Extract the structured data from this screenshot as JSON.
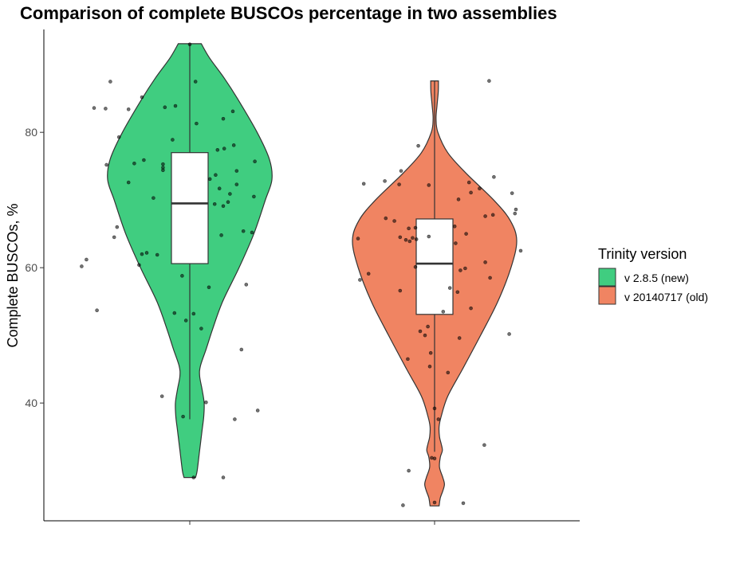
{
  "chart_data": {
    "type": "violin",
    "title": "Comparison of complete BUSCOs percentage in two assemblies",
    "xlabel": "",
    "ylabel": "Complete BUSCOs, %",
    "ylim": [
      22.6,
      95.2
    ],
    "yticks": [
      40,
      60,
      80
    ],
    "legend": {
      "title": "Trinity version",
      "position": "right"
    },
    "grid": false,
    "series": [
      {
        "name": "v 2.8.5 (new)",
        "color": "#40cd80",
        "box": {
          "min": 37.6,
          "q1": 60.6,
          "median": 69.5,
          "q3": 77.0,
          "max": 93.1
        },
        "violin_range": [
          29.0,
          93.1
        ],
        "density_profile": [
          [
            29.0,
            0.07
          ],
          [
            30.0,
            0.09
          ],
          [
            33.0,
            0.12
          ],
          [
            36.0,
            0.15
          ],
          [
            38.0,
            0.17
          ],
          [
            40.0,
            0.175
          ],
          [
            42.0,
            0.15
          ],
          [
            44.0,
            0.12
          ],
          [
            45.5,
            0.13
          ],
          [
            48.0,
            0.2
          ],
          [
            51.0,
            0.28
          ],
          [
            55.0,
            0.4
          ],
          [
            60.0,
            0.6
          ],
          [
            65.0,
            0.78
          ],
          [
            70.0,
            0.92
          ],
          [
            73.0,
            1.0
          ],
          [
            76.0,
            0.97
          ],
          [
            80.0,
            0.82
          ],
          [
            85.0,
            0.58
          ],
          [
            88.0,
            0.42
          ],
          [
            91.0,
            0.24
          ],
          [
            93.1,
            0.14
          ]
        ],
        "points": [
          [
            93.0,
            0.0
          ],
          [
            87.5,
            0.06
          ],
          [
            87.5,
            -0.83
          ],
          [
            85.2,
            -0.5
          ],
          [
            83.9,
            -0.15
          ],
          [
            83.7,
            -0.26
          ],
          [
            83.6,
            -1.0
          ],
          [
            83.5,
            -0.88
          ],
          [
            83.4,
            -0.64
          ],
          [
            83.1,
            0.45
          ],
          [
            82.0,
            0.35
          ],
          [
            81.3,
            0.07
          ],
          [
            79.3,
            -0.74
          ],
          [
            78.9,
            -0.18
          ],
          [
            78.1,
            0.46
          ],
          [
            77.6,
            0.36
          ],
          [
            77.4,
            0.29
          ],
          [
            75.9,
            -0.48
          ],
          [
            75.7,
            0.68
          ],
          [
            75.4,
            -0.58
          ],
          [
            75.3,
            -0.28
          ],
          [
            75.2,
            -0.87
          ],
          [
            74.8,
            -0.28
          ],
          [
            74.4,
            -0.28
          ],
          [
            74.3,
            0.49
          ],
          [
            73.7,
            0.27
          ],
          [
            73.1,
            0.21
          ],
          [
            72.6,
            -0.64
          ],
          [
            72.3,
            0.49
          ],
          [
            71.7,
            0.31
          ],
          [
            70.9,
            0.42
          ],
          [
            70.5,
            0.67
          ],
          [
            70.3,
            -0.38
          ],
          [
            69.7,
            0.4
          ],
          [
            69.4,
            0.26
          ],
          [
            69.1,
            0.35
          ],
          [
            66.0,
            -0.76
          ],
          [
            65.4,
            0.56
          ],
          [
            65.2,
            0.65
          ],
          [
            64.8,
            0.33
          ],
          [
            64.5,
            -0.79
          ],
          [
            62.2,
            -0.45
          ],
          [
            62.0,
            -0.5
          ],
          [
            61.9,
            -0.34
          ],
          [
            61.2,
            -1.08
          ],
          [
            60.4,
            -0.53
          ],
          [
            60.2,
            -1.13
          ],
          [
            58.8,
            -0.08
          ],
          [
            57.5,
            0.59
          ],
          [
            57.1,
            0.2
          ],
          [
            53.7,
            -0.97
          ],
          [
            53.3,
            -0.16
          ],
          [
            53.2,
            0.04
          ],
          [
            52.2,
            -0.04
          ],
          [
            51.0,
            0.12
          ],
          [
            47.9,
            0.54
          ],
          [
            41.0,
            -0.29
          ],
          [
            40.1,
            0.17
          ],
          [
            38.9,
            0.71
          ],
          [
            38.0,
            -0.07
          ],
          [
            37.6,
            0.47
          ],
          [
            29.0,
            0.04
          ],
          [
            29.0,
            0.35
          ]
        ]
      },
      {
        "name": "v 20140717 (old)",
        "color": "#f08462",
        "box": {
          "min": 32.8,
          "q1": 53.1,
          "median": 60.6,
          "q3": 67.2,
          "max": 87.6
        },
        "violin_range": [
          24.8,
          87.6
        ],
        "density_profile": [
          [
            24.8,
            0.055
          ],
          [
            26.0,
            0.07
          ],
          [
            27.0,
            0.1
          ],
          [
            28.0,
            0.12
          ],
          [
            29.0,
            0.1
          ],
          [
            30.5,
            0.06
          ],
          [
            32.0,
            0.07
          ],
          [
            33.0,
            0.095
          ],
          [
            34.0,
            0.08
          ],
          [
            35.0,
            0.06
          ],
          [
            36.5,
            0.055
          ],
          [
            38.0,
            0.08
          ],
          [
            41.0,
            0.16
          ],
          [
            45.0,
            0.34
          ],
          [
            50.0,
            0.56
          ],
          [
            55.0,
            0.77
          ],
          [
            60.0,
            0.93
          ],
          [
            64.0,
            1.0
          ],
          [
            67.0,
            0.92
          ],
          [
            70.0,
            0.72
          ],
          [
            74.0,
            0.38
          ],
          [
            77.0,
            0.16
          ],
          [
            80.0,
            0.04
          ],
          [
            82.0,
            0.018
          ],
          [
            84.0,
            0.03
          ],
          [
            86.0,
            0.045
          ],
          [
            87.6,
            0.047
          ]
        ],
        "points": [
          [
            87.6,
            0.57
          ],
          [
            78.0,
            -0.17
          ],
          [
            74.3,
            -0.35
          ],
          [
            73.4,
            0.62
          ],
          [
            72.8,
            -0.52
          ],
          [
            72.6,
            0.36
          ],
          [
            72.4,
            -0.74
          ],
          [
            72.3,
            -0.37
          ],
          [
            72.2,
            -0.06
          ],
          [
            71.7,
            0.47
          ],
          [
            71.1,
            0.38
          ],
          [
            71.0,
            0.81
          ],
          [
            70.1,
            0.25
          ],
          [
            68.6,
            0.85
          ],
          [
            68.0,
            0.84
          ],
          [
            67.8,
            0.61
          ],
          [
            67.6,
            0.53
          ],
          [
            67.3,
            -0.51
          ],
          [
            66.9,
            -0.42
          ],
          [
            66.1,
            0.21
          ],
          [
            65.9,
            -0.2
          ],
          [
            65.8,
            -0.27
          ],
          [
            65.0,
            0.33
          ],
          [
            64.6,
            -0.06
          ],
          [
            64.5,
            -0.36
          ],
          [
            64.4,
            -0.23
          ],
          [
            64.3,
            -0.8
          ],
          [
            64.2,
            -0.19
          ],
          [
            64.1,
            -0.3
          ],
          [
            63.9,
            -0.26
          ],
          [
            63.6,
            0.22
          ],
          [
            62.5,
            0.9
          ],
          [
            60.8,
            0.53
          ],
          [
            60.1,
            -0.2
          ],
          [
            59.9,
            0.32
          ],
          [
            59.6,
            0.27
          ],
          [
            59.1,
            -0.69
          ],
          [
            58.5,
            0.58
          ],
          [
            58.2,
            -0.78
          ],
          [
            57.0,
            0.16
          ],
          [
            56.6,
            -0.36
          ],
          [
            56.4,
            0.24
          ],
          [
            54.0,
            0.38
          ],
          [
            53.5,
            0.09
          ],
          [
            51.3,
            -0.07
          ],
          [
            50.6,
            -0.15
          ],
          [
            50.2,
            0.78
          ],
          [
            50.0,
            -0.1
          ],
          [
            49.6,
            0.26
          ],
          [
            47.4,
            -0.04
          ],
          [
            46.5,
            -0.28
          ],
          [
            45.4,
            -0.05
          ],
          [
            44.5,
            0.14
          ],
          [
            39.2,
            0.0
          ],
          [
            37.6,
            0.04
          ],
          [
            33.8,
            0.52
          ],
          [
            31.9,
            -0.03
          ],
          [
            31.8,
            0.0
          ],
          [
            30.0,
            -0.27
          ],
          [
            25.3,
            0.0
          ],
          [
            25.2,
            0.3
          ],
          [
            24.9,
            -0.33
          ]
        ]
      }
    ]
  }
}
